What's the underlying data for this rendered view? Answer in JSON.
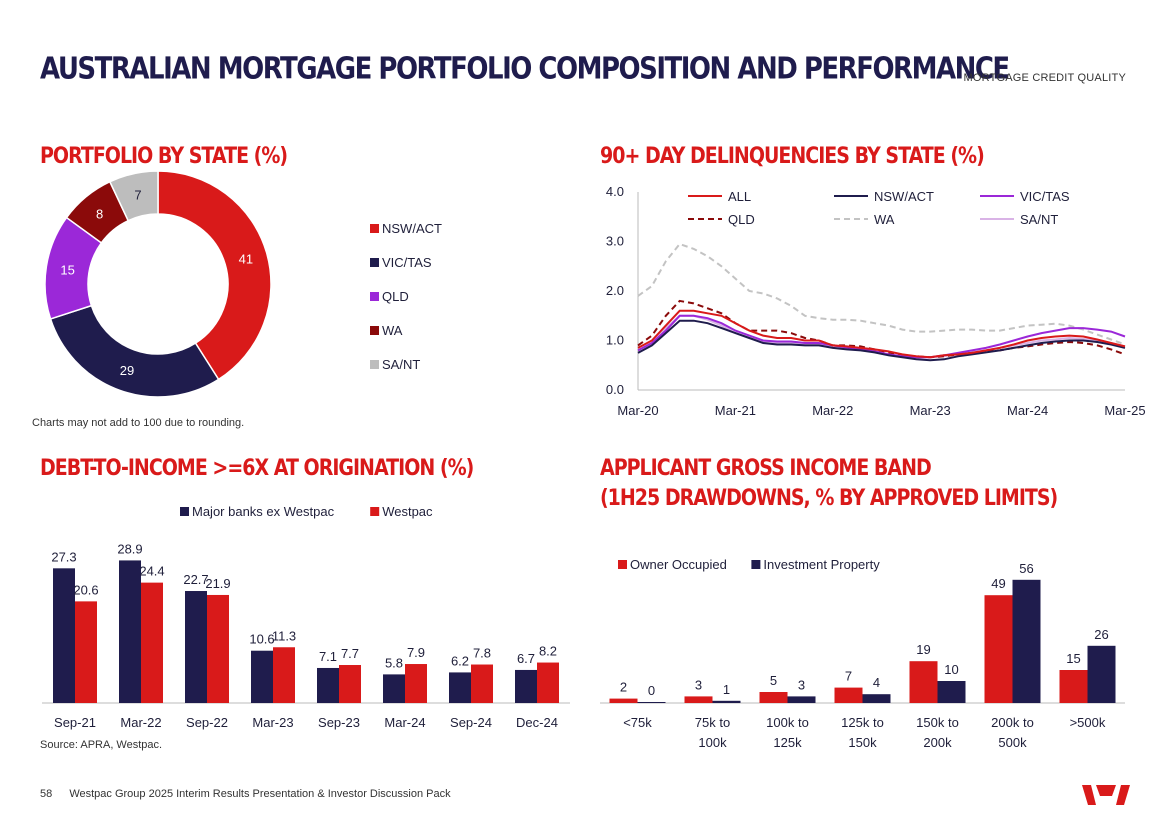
{
  "header": {
    "title": "AUSTRALIAN MORTGAGE PORTFOLIO COMPOSITION AND PERFORMANCE",
    "section": "MORTGAGE CREDIT QUALITY"
  },
  "notes": {
    "rounding": "Charts may not add to 100 due to rounding.",
    "source": "Source: APRA, Westpac."
  },
  "footer": {
    "page_number": "58",
    "text": "Westpac Group 2025 Interim Results Presentation & Investor Discussion Pack"
  },
  "colors": {
    "red": "#d91a1a",
    "navy": "#1f1c4d",
    "purple": "#9b28d8",
    "darkred": "#8b0a0a",
    "grey": "#bdbdbd",
    "lightgrey": "#c3c3c3",
    "lilac": "#d9b3e6"
  },
  "chart_data": [
    {
      "id": "portfolio",
      "type": "pie",
      "title": "PORTFOLIO BY STATE (%)",
      "slices": [
        {
          "label": "NSW/ACT",
          "value": 41,
          "color": "#d91a1a"
        },
        {
          "label": "VIC/TAS",
          "value": 29,
          "color": "#1f1c4d"
        },
        {
          "label": "QLD",
          "value": 15,
          "color": "#9b28d8"
        },
        {
          "label": "WA",
          "value": 8,
          "color": "#8b0a0a"
        },
        {
          "label": "SA/NT",
          "value": 7,
          "color": "#bdbdbd"
        }
      ],
      "legend": "right"
    },
    {
      "id": "delinquencies",
      "type": "line",
      "title": "90+ DAY DELINQUENCIES BY STATE (%)",
      "ylim": [
        0,
        4
      ],
      "yticks": [
        "0.0",
        "1.0",
        "2.0",
        "3.0",
        "4.0"
      ],
      "xticks": [
        "Mar-20",
        "Mar-21",
        "Mar-22",
        "Mar-23",
        "Mar-24",
        "Mar-25"
      ],
      "series": [
        {
          "name": "ALL",
          "color": "#d91a1a",
          "dash": false,
          "values": [
            0.85,
            1.0,
            1.3,
            1.6,
            1.6,
            1.55,
            1.5,
            1.35,
            1.2,
            1.1,
            1.05,
            1.05,
            1.0,
            1.0,
            0.9,
            0.88,
            0.85,
            0.82,
            0.78,
            0.72,
            0.68,
            0.66,
            0.7,
            0.72,
            0.75,
            0.8,
            0.85,
            0.92,
            1.0,
            1.05,
            1.08,
            1.1,
            1.08,
            1.02,
            0.95,
            0.88
          ]
        },
        {
          "name": "NSW/ACT",
          "color": "#1f1c4d",
          "dash": false,
          "values": [
            0.75,
            0.9,
            1.15,
            1.4,
            1.4,
            1.35,
            1.25,
            1.15,
            1.05,
            0.95,
            0.92,
            0.92,
            0.9,
            0.9,
            0.85,
            0.82,
            0.8,
            0.76,
            0.7,
            0.66,
            0.62,
            0.6,
            0.62,
            0.68,
            0.72,
            0.76,
            0.8,
            0.85,
            0.9,
            0.95,
            0.98,
            1.0,
            1.0,
            0.97,
            0.92,
            0.85
          ]
        },
        {
          "name": "VIC/TAS",
          "color": "#9b28d8",
          "dash": false,
          "values": [
            0.8,
            0.95,
            1.2,
            1.5,
            1.5,
            1.45,
            1.35,
            1.2,
            1.1,
            1.0,
            0.98,
            0.98,
            0.95,
            0.95,
            0.9,
            0.86,
            0.82,
            0.78,
            0.72,
            0.68,
            0.66,
            0.66,
            0.7,
            0.75,
            0.8,
            0.85,
            0.92,
            1.0,
            1.08,
            1.15,
            1.2,
            1.25,
            1.25,
            1.22,
            1.18,
            1.08
          ]
        },
        {
          "name": "QLD",
          "color": "#8b0a0a",
          "dash": true,
          "values": [
            0.9,
            1.1,
            1.5,
            1.8,
            1.75,
            1.65,
            1.55,
            1.35,
            1.2,
            1.2,
            1.2,
            1.15,
            1.05,
            1.0,
            0.9,
            0.9,
            0.88,
            0.82,
            0.76,
            0.7,
            0.68,
            0.66,
            0.68,
            0.72,
            0.75,
            0.78,
            0.8,
            0.85,
            0.88,
            0.92,
            0.95,
            0.97,
            0.95,
            0.9,
            0.82,
            0.72
          ]
        },
        {
          "name": "WA",
          "color": "#c3c3c3",
          "dash": true,
          "values": [
            1.9,
            2.1,
            2.6,
            2.95,
            2.85,
            2.7,
            2.5,
            2.25,
            2.0,
            1.95,
            1.85,
            1.7,
            1.5,
            1.45,
            1.42,
            1.42,
            1.4,
            1.35,
            1.3,
            1.22,
            1.18,
            1.18,
            1.2,
            1.22,
            1.22,
            1.2,
            1.2,
            1.25,
            1.3,
            1.32,
            1.34,
            1.3,
            1.22,
            1.12,
            1.02,
            0.92
          ]
        },
        {
          "name": "SA/NT",
          "color": "#d9b3e6",
          "dash": false,
          "values": [
            0.8,
            0.95,
            1.25,
            1.5,
            1.5,
            1.42,
            1.3,
            1.15,
            1.05,
            0.98,
            0.95,
            0.95,
            0.92,
            0.92,
            0.88,
            0.85,
            0.82,
            0.78,
            0.72,
            0.68,
            0.66,
            0.66,
            0.68,
            0.72,
            0.76,
            0.8,
            0.85,
            0.9,
            0.95,
            1.0,
            1.02,
            1.05,
            1.03,
            1.0,
            0.95,
            0.88
          ]
        }
      ]
    },
    {
      "id": "dti",
      "type": "bar",
      "title": "DEBT-TO-INCOME >=6X AT ORIGINATION (%)",
      "categories": [
        "Sep-21",
        "Mar-22",
        "Sep-22",
        "Mar-23",
        "Sep-23",
        "Mar-24",
        "Sep-24",
        "Dec-24"
      ],
      "series": [
        {
          "name": "Major banks ex Westpac",
          "color": "#1f1c4d",
          "values": [
            27.3,
            28.9,
            22.7,
            10.6,
            7.1,
            5.8,
            6.2,
            6.7
          ]
        },
        {
          "name": "Westpac",
          "color": "#d91a1a",
          "values": [
            20.6,
            24.4,
            21.9,
            11.3,
            7.7,
            7.9,
            7.8,
            8.2
          ]
        }
      ],
      "ylim": [
        0,
        30
      ]
    },
    {
      "id": "income",
      "type": "bar",
      "title": "APPLICANT GROSS INCOME BAND",
      "subtitle": "(1H25 DRAWDOWNS, % BY APPROVED LIMITS)",
      "categories": [
        [
          "<75k"
        ],
        [
          "75k to",
          "100k"
        ],
        [
          "100k to",
          "125k"
        ],
        [
          "125k to",
          "150k"
        ],
        [
          "150k to",
          "200k"
        ],
        [
          "200k to",
          "500k"
        ],
        [
          ">500k"
        ]
      ],
      "series": [
        {
          "name": "Owner Occupied",
          "color": "#d91a1a",
          "values": [
            2,
            3,
            5,
            7,
            19,
            49,
            15
          ]
        },
        {
          "name": "Investment Property",
          "color": "#1f1c4d",
          "values": [
            0,
            1,
            3,
            4,
            10,
            56,
            26
          ]
        }
      ],
      "ylim": [
        0,
        60
      ]
    }
  ]
}
